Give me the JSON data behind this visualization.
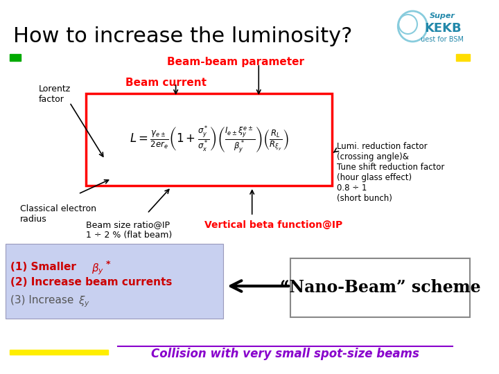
{
  "title": "How to increase the luminosity?",
  "title_fontsize": 22,
  "bg_color": "#ffffff",
  "lorentz_label": "Lorentz\nfactor",
  "classical_label": "Classical electron\nradius",
  "beam_size_label": "Beam size ratio@IP\n1 ÷ 2 % (flat beam)",
  "beam_current_label": "Beam current",
  "beam_beam_label": "Beam-beam parameter",
  "vertical_beta_label": "Vertical beta function@IP",
  "lumi_reduction_text": "Lumi. reduction factor\n(crossing angle)&\nTune shift reduction factor\n(hour glass effect)\n0.8 ÷ 1\n(short bunch)",
  "green_square_color": "#00aa00",
  "yellow_square_color": "#ffdd00",
  "list_box_color": "#c8d0f0",
  "list_item2": "(2) Increase beam currents",
  "list_red_color": "#cc0000",
  "list_gray_color": "#555555",
  "nano_beam_text": "“Nano-Beam” scheme",
  "collision_text": "Collision with very small spot-size beams",
  "collision_color": "#8800cc",
  "yellow_line_color": "#ffee00",
  "beam_current_color": "#ff0000",
  "beam_beam_color": "#ff0000",
  "vertical_beta_color": "#ff0000"
}
